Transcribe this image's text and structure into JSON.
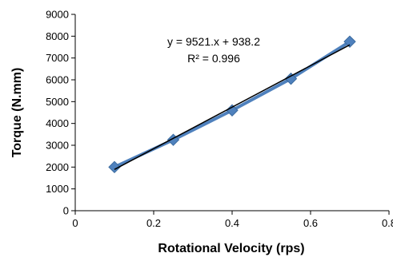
{
  "chart_data": {
    "type": "scatter",
    "title": "",
    "xlabel": "Rotational Velocity (rps)",
    "ylabel": "Torque (N.mm)",
    "xlim": [
      0,
      0.8
    ],
    "ylim": [
      0,
      9000
    ],
    "x_ticks": [
      0,
      0.2,
      0.4,
      0.6,
      0.8
    ],
    "x_tick_labels": [
      "0",
      "0.2",
      "0.4",
      "0.6",
      "0.8"
    ],
    "y_ticks": [
      0,
      1000,
      2000,
      3000,
      4000,
      5000,
      6000,
      7000,
      8000,
      9000
    ],
    "y_tick_labels": [
      "0",
      "1000",
      "2000",
      "3000",
      "4000",
      "5000",
      "6000",
      "7000",
      "8000",
      "9000"
    ],
    "grid": false,
    "legend": false,
    "series": [
      {
        "x": [
          0.1,
          0.25,
          0.4,
          0.55,
          0.7
        ],
        "values": [
          2000,
          3250,
          4600,
          6050,
          7750
        ],
        "color": "#4F81BD",
        "marker": "diamond",
        "line": true
      }
    ],
    "trendline": {
      "type": "linear",
      "slope": 9521,
      "intercept": 938.2,
      "x_range": [
        0.1,
        0.7
      ],
      "color": "#000000"
    },
    "annotations": [
      "y = 9521.x + 938.2",
      "R² = 0.996"
    ]
  }
}
